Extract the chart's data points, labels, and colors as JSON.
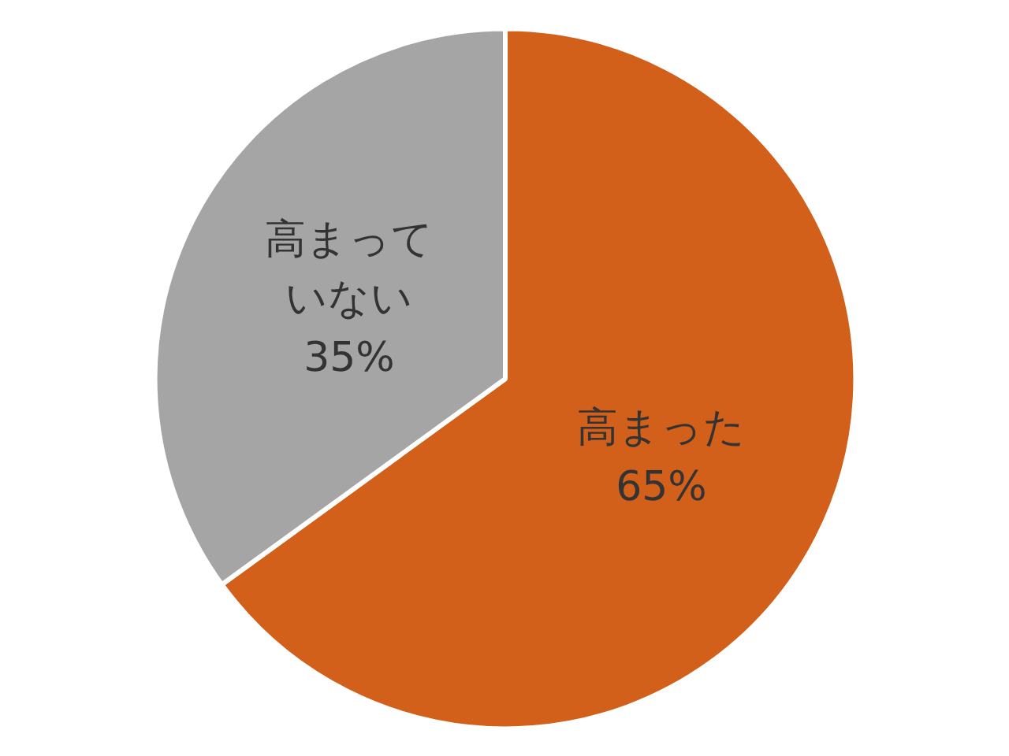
{
  "chart_data": {
    "type": "pie",
    "categories": [
      "高まった",
      "高まっていない"
    ],
    "values": [
      65,
      35
    ],
    "colors": [
      "#d2601a",
      "#a5a5a5"
    ],
    "value_labels": [
      "65%",
      "35%"
    ]
  }
}
